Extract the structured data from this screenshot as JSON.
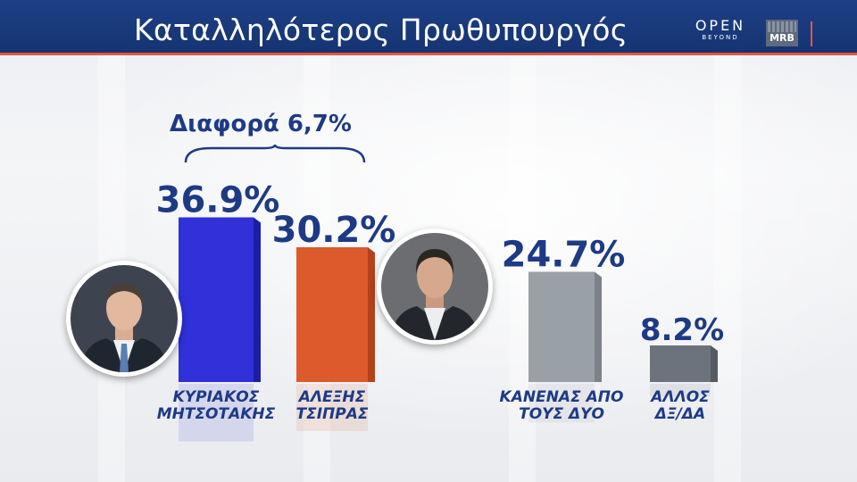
{
  "header": {
    "title": "Καταλληλότερος Πρωθυπουργός",
    "logo_open": "OPEN",
    "logo_open_sub": "BEYOND",
    "logo_mrb": "MRB"
  },
  "difference_label": "Διαφορά 6,7%",
  "colors": {
    "header_bg": "#1c3f86",
    "accent": "#e0593a",
    "text_blue": "#1d3a85",
    "bar_blue": "#3031d9",
    "bar_orange": "#dd5a2c",
    "bar_gray": "#9aa0a8",
    "bar_dark_gray": "#6c737c"
  },
  "chart_data": {
    "type": "bar",
    "title": "Καταλληλότερος Πρωθυπουργός",
    "xlabel": "",
    "ylabel": "",
    "ylim": [
      0,
      40
    ],
    "grid": false,
    "legend": "none",
    "categories": [
      [
        "ΚΥΡΙΑΚΟΣ",
        "ΜΗΤΣΟΤΑΚΗΣ"
      ],
      [
        "ΑΛΕΞΗΣ",
        "ΤΣΙΠΡΑΣ"
      ],
      [
        "ΚΑΝΕΝΑΣ ΑΠΟ",
        "ΤΟΥΣ ΔΥΟ"
      ],
      [
        "ΑΛΛΟΣ",
        "ΔΞ/ΔΑ"
      ]
    ],
    "values": [
      36.9,
      30.2,
      24.7,
      8.2
    ],
    "value_labels": [
      "36.9%",
      "30.2%",
      "24.7%",
      "8.2%"
    ],
    "bar_colors": [
      "#3031d9",
      "#dd5a2c",
      "#9aa0a8",
      "#6c737c"
    ],
    "bar_side_colors": [
      "#1c1ea8",
      "#b4421c",
      "#7c828a",
      "#555b63"
    ]
  }
}
